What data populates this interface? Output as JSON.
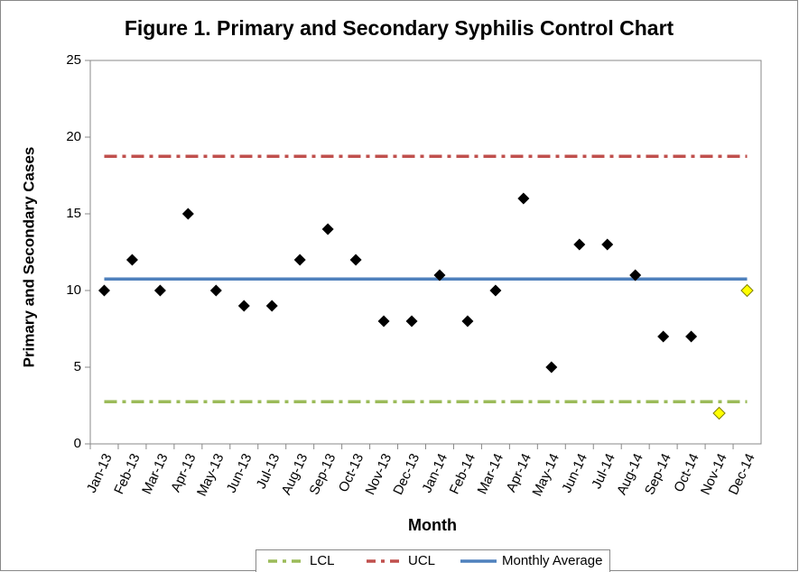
{
  "chart_data": {
    "type": "scatter",
    "title": "Figure 1.  Primary and Secondary Syphilis Control Chart",
    "x_label": "Month",
    "y_label": "Primary and Secondary Cases",
    "categories": [
      "Jan-13",
      "Feb-13",
      "Mar-13",
      "Apr-13",
      "May-13",
      "Jun-13",
      "Jul-13",
      "Aug-13",
      "Sep-13",
      "Oct-13",
      "Nov-13",
      "Dec-13",
      "Jan-14",
      "Feb-14",
      "Mar-14",
      "Apr-14",
      "May-14",
      "Jun-14",
      "Jul-14",
      "Aug-14",
      "Sep-14",
      "Oct-14",
      "Nov-14",
      "Dec-14"
    ],
    "series": [
      {
        "values": [
          10,
          12,
          10,
          15,
          10,
          9,
          9,
          12,
          14,
          12,
          8,
          8,
          11,
          8,
          10,
          16,
          5,
          13,
          13,
          11,
          7,
          7,
          2,
          10
        ],
        "marker_colors": [
          "#000000",
          "#000000",
          "#000000",
          "#000000",
          "#000000",
          "#000000",
          "#000000",
          "#000000",
          "#000000",
          "#000000",
          "#000000",
          "#000000",
          "#000000",
          "#000000",
          "#000000",
          "#000000",
          "#000000",
          "#000000",
          "#000000",
          "#000000",
          "#000000",
          "#000000",
          "#ffff00",
          "#ffff00"
        ]
      }
    ],
    "reference_lines": [
      {
        "name": "LCL",
        "value": 2.75,
        "color": "#9bbb59",
        "dash": "dash-dot"
      },
      {
        "name": "UCL",
        "value": 18.75,
        "color": "#c0504d",
        "dash": "dash-dot"
      },
      {
        "name": "Monthly Average",
        "value": 10.75,
        "color": "#4f81bd",
        "dash": "solid"
      }
    ],
    "ylim": [
      0,
      25
    ],
    "yticks": [
      0,
      5,
      10,
      15,
      20,
      25
    ],
    "legend": "bottom"
  }
}
